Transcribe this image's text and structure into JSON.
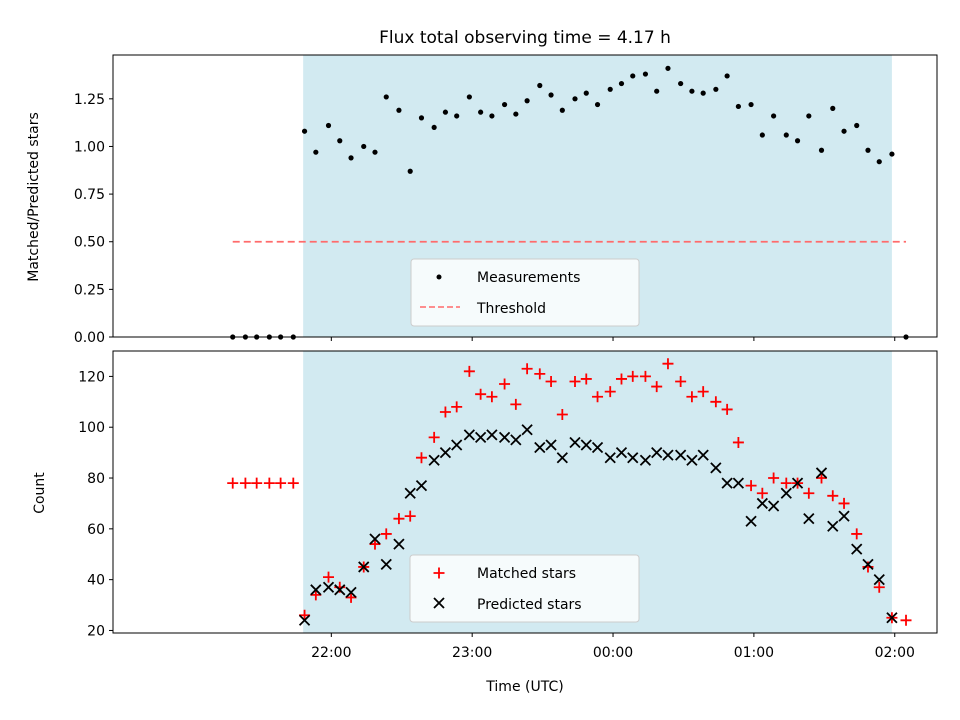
{
  "title": "Flux total observing time = 4.17 h",
  "chart_data": [
    {
      "type": "scatter",
      "panel": "top",
      "ylabel": "Matched/Predicted stars",
      "ylim": [
        0,
        1.48
      ],
      "yticks": [
        0.0,
        0.25,
        0.5,
        0.75,
        1.0,
        1.25
      ],
      "ytick_labels": [
        "0.00",
        "0.25",
        "0.50",
        "0.75",
        "1.00",
        "1.25"
      ],
      "x_unit": "hours since 00:00 UTC (21:00 = -3)",
      "xlim": [
        -3.55,
        2.3
      ],
      "shaded_interval": [
        -2.2,
        1.98
      ],
      "shade_color": "#add8e6",
      "legend_position": "lower center",
      "legend": {
        "measurements": "Measurements",
        "threshold": "Threshold"
      },
      "threshold": {
        "value": 0.5,
        "x": [
          -2.7,
          2.08
        ],
        "color": "#ff6b6b"
      },
      "measurements": {
        "color": "#000000",
        "x": [
          -2.7,
          -2.61,
          -2.53,
          -2.44,
          -2.36,
          -2.27,
          -2.19,
          -2.11,
          -2.02,
          -1.94,
          -1.86,
          -1.77,
          -1.69,
          -1.61,
          -1.52,
          -1.44,
          -1.36,
          -1.27,
          -1.19,
          -1.11,
          -1.02,
          -0.94,
          -0.86,
          -0.77,
          -0.69,
          -0.61,
          -0.52,
          -0.44,
          -0.36,
          -0.27,
          -0.19,
          -0.11,
          -0.02,
          0.06,
          0.14,
          0.23,
          0.31,
          0.39,
          0.48,
          0.56,
          0.64,
          0.73,
          0.81,
          0.89,
          0.98,
          1.06,
          1.14,
          1.23,
          1.31,
          1.39,
          1.48,
          1.56,
          1.64,
          1.73,
          1.81,
          1.89,
          1.98,
          2.08
        ],
        "y": [
          0,
          0,
          0,
          0,
          0,
          0,
          1.08,
          0.97,
          1.11,
          1.03,
          0.94,
          1.0,
          0.97,
          1.26,
          1.19,
          0.87,
          1.15,
          1.1,
          1.18,
          1.16,
          1.26,
          1.18,
          1.16,
          1.22,
          1.17,
          1.24,
          1.32,
          1.27,
          1.19,
          1.25,
          1.28,
          1.22,
          1.3,
          1.33,
          1.37,
          1.38,
          1.29,
          1.41,
          1.33,
          1.29,
          1.28,
          1.3,
          1.37,
          1.21,
          1.22,
          1.06,
          1.16,
          1.06,
          1.03,
          1.16,
          0.98,
          1.2,
          1.08,
          1.11,
          0.98,
          0.92,
          0.96,
          0
        ]
      }
    },
    {
      "type": "scatter",
      "panel": "bottom",
      "ylabel": "Count",
      "xlabel": "Time (UTC)",
      "ylim": [
        19,
        130
      ],
      "yticks": [
        20,
        40,
        60,
        80,
        100,
        120
      ],
      "x_unit": "hours since 00:00 UTC (21:00 = -3)",
      "xlim": [
        -3.55,
        2.3
      ],
      "xticks": [
        -2,
        -1,
        0,
        1,
        2
      ],
      "xtick_labels": [
        "22:00",
        "23:00",
        "00:00",
        "01:00",
        "02:00"
      ],
      "shaded_interval": [
        -2.2,
        1.98
      ],
      "shade_color": "#add8e6",
      "legend_position": "lower center",
      "legend": {
        "matched": "Matched stars",
        "predicted": "Predicted stars"
      },
      "matched": {
        "color": "#ff0000",
        "marker": "+",
        "x": [
          -2.7,
          -2.61,
          -2.53,
          -2.44,
          -2.36,
          -2.27,
          -2.19,
          -2.11,
          -2.02,
          -1.94,
          -1.86,
          -1.77,
          -1.69,
          -1.61,
          -1.52,
          -1.44,
          -1.36,
          -1.27,
          -1.19,
          -1.11,
          -1.02,
          -0.94,
          -0.86,
          -0.77,
          -0.69,
          -0.61,
          -0.52,
          -0.44,
          -0.36,
          -0.27,
          -0.19,
          -0.11,
          -0.02,
          0.06,
          0.14,
          0.23,
          0.31,
          0.39,
          0.48,
          0.56,
          0.64,
          0.73,
          0.81,
          0.89,
          0.98,
          1.06,
          1.14,
          1.23,
          1.31,
          1.39,
          1.48,
          1.56,
          1.64,
          1.73,
          1.81,
          1.89,
          1.98,
          2.08
        ],
        "y": [
          78,
          78,
          78,
          78,
          78,
          78,
          26,
          34,
          41,
          37,
          33,
          45,
          54,
          58,
          64,
          65,
          88,
          96,
          106,
          108,
          122,
          113,
          112,
          117,
          109,
          123,
          121,
          118,
          105,
          118,
          119,
          112,
          114,
          119,
          120,
          120,
          116,
          125,
          118,
          112,
          114,
          110,
          107,
          94,
          77,
          74,
          80,
          78,
          78,
          74,
          80,
          73,
          70,
          58,
          45,
          37,
          25,
          24
        ]
      },
      "predicted": {
        "color": "#000000",
        "marker": "x",
        "x": [
          -2.19,
          -2.11,
          -2.02,
          -1.94,
          -1.86,
          -1.77,
          -1.69,
          -1.61,
          -1.52,
          -1.44,
          -1.36,
          -1.27,
          -1.19,
          -1.11,
          -1.02,
          -0.94,
          -0.86,
          -0.77,
          -0.69,
          -0.61,
          -0.52,
          -0.44,
          -0.36,
          -0.27,
          -0.19,
          -0.11,
          -0.02,
          0.06,
          0.14,
          0.23,
          0.31,
          0.39,
          0.48,
          0.56,
          0.64,
          0.73,
          0.81,
          0.89,
          0.98,
          1.06,
          1.14,
          1.23,
          1.31,
          1.39,
          1.48,
          1.56,
          1.64,
          1.73,
          1.81,
          1.89,
          1.98
        ],
        "y": [
          24,
          36,
          37,
          36,
          35,
          45,
          56,
          46,
          54,
          74,
          77,
          87,
          90,
          93,
          97,
          96,
          97,
          96,
          95,
          99,
          92,
          93,
          88,
          94,
          93,
          92,
          88,
          90,
          88,
          87,
          90,
          89,
          89,
          87,
          89,
          84,
          78,
          78,
          63,
          70,
          69,
          74,
          78,
          64,
          82,
          61,
          65,
          52,
          46,
          40,
          25
        ]
      }
    }
  ]
}
